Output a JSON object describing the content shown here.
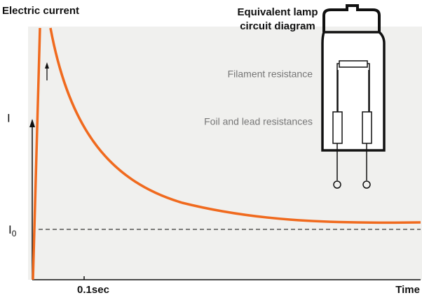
{
  "header": {
    "title": "Electric current"
  },
  "lamp": {
    "title_lines": [
      "Equivalent lamp",
      "circuit diagram"
    ],
    "filament_label": "Filament resistance",
    "foil_label": "Foil and lead resistances"
  },
  "axes": {
    "y_label": "I",
    "baseline_label": {
      "main": "I",
      "sub": "0"
    },
    "x_tick_label": "0.1sec",
    "x_label": "Time"
  }
}
